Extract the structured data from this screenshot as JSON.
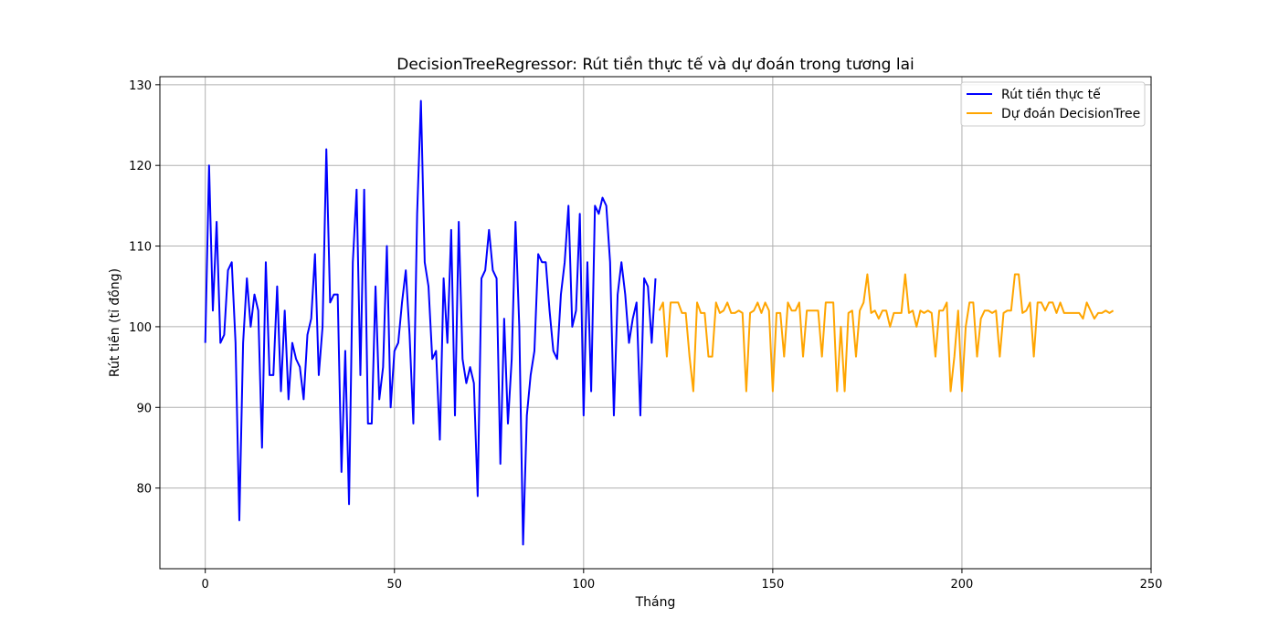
{
  "chart_data": {
    "type": "line",
    "title": "DecisionTreeRegressor: Rút tiền thực tế và dự đoán trong tương lai",
    "xlabel": "Tháng",
    "ylabel": "Rút tiền (tỉ đồng)",
    "xlim": [
      -12,
      250
    ],
    "ylim": [
      70,
      131
    ],
    "xticks": [
      0,
      50,
      100,
      150,
      200,
      250
    ],
    "yticks": [
      80,
      90,
      100,
      110,
      120,
      130
    ],
    "grid": true,
    "legend_position": "top-right",
    "series": [
      {
        "name": "Rút tiền thực tế",
        "color": "#0000ff",
        "x_start": 0,
        "values": [
          98,
          120,
          102,
          113,
          98,
          99,
          107,
          108,
          98,
          76,
          98,
          106,
          100,
          104,
          102,
          85,
          108,
          94,
          94,
          105,
          92,
          102,
          91,
          98,
          96,
          95,
          91,
          99,
          101,
          109,
          94,
          100,
          122,
          103,
          104,
          104,
          82,
          97,
          78,
          108,
          117,
          94,
          117,
          88,
          88,
          105,
          91,
          95,
          110,
          90,
          97,
          98,
          103,
          107,
          99,
          88,
          114,
          128,
          108,
          105,
          96,
          97,
          86,
          106,
          98,
          112,
          89,
          113,
          96,
          93,
          95,
          93,
          79,
          106,
          107,
          112,
          107,
          106,
          83,
          101,
          88,
          96,
          113,
          100,
          73,
          89,
          94,
          97,
          109,
          108,
          108,
          102,
          97,
          96,
          104,
          108,
          115,
          100,
          102,
          114,
          89,
          108,
          92,
          115,
          114,
          116,
          115,
          108,
          89,
          104,
          108,
          104,
          98,
          101,
          103,
          89,
          106,
          105,
          98,
          106
        ]
      },
      {
        "name": "Dự đoán DecisionTree",
        "color": "#ffa500",
        "x_start": 120,
        "values": [
          102,
          103,
          96.3,
          103,
          103,
          103,
          101.7,
          101.7,
          96.3,
          92,
          103,
          101.7,
          101.7,
          96.3,
          96.3,
          103,
          101.7,
          102,
          103,
          101.7,
          101.7,
          102,
          101.7,
          92,
          101.7,
          102,
          103,
          101.7,
          103,
          102,
          92,
          101.7,
          101.7,
          96.3,
          103,
          102,
          102,
          103,
          96.3,
          102,
          102,
          102,
          102,
          96.3,
          103,
          103,
          103,
          92,
          100,
          92,
          101.7,
          102,
          96.3,
          102,
          103,
          106.5,
          101.7,
          102,
          101,
          102,
          102,
          100,
          101.7,
          101.7,
          101.7,
          106.5,
          101.7,
          102,
          100,
          102,
          101.7,
          102,
          101.7,
          96.3,
          102,
          102,
          103,
          92,
          96.3,
          102,
          92,
          100,
          103,
          103,
          96.3,
          101,
          102,
          102,
          101.7,
          102,
          96.3,
          101.7,
          102,
          102,
          106.5,
          106.5,
          101.7,
          102,
          103,
          96.3,
          103,
          103,
          102,
          103,
          103,
          101.7,
          103,
          101.7,
          101.7,
          101.7,
          101.7,
          101.7,
          101,
          103,
          102,
          101,
          101.7,
          101.7,
          102,
          101.7,
          102
        ]
      }
    ]
  }
}
